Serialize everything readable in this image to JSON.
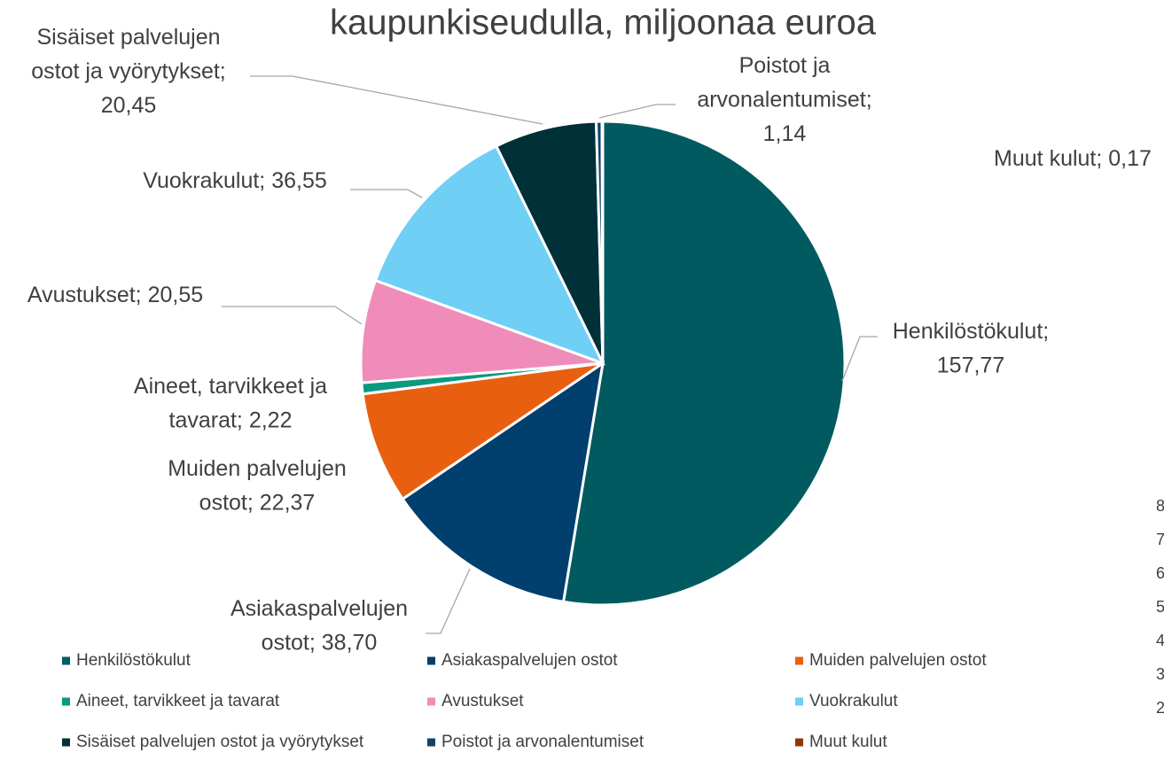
{
  "chart_data": {
    "type": "pie",
    "title": "kaupunkiseudulla, miljoonaa euroa",
    "categories": [
      "Henkilöstökulut",
      "Asiakaspalvelujen ostot",
      "Muiden palvelujen ostot",
      "Aineet, tarvikkeet ja tavarat",
      "Avustukset",
      "Vuokrakulut",
      "Sisäiset palvelujen ostot ja vyörytykset",
      "Poistot ja arvonalentumiset",
      "Muut kulut"
    ],
    "values": [
      157.77,
      38.7,
      22.37,
      2.22,
      20.55,
      36.55,
      20.45,
      1.14,
      0.17
    ],
    "value_labels": [
      "Henkilöstökulut; 157,77",
      "Asiakaspalvelujen ostot; 38,70",
      "Muiden palvelujen ostot; 22,37",
      "Aineet, tarvikkeet ja tavarat; 2,22",
      "Avustukset; 20,55",
      "Vuokrakulut; 36,55",
      "Sisäiset palvelujen ostot ja vyörytykset; 20,45",
      "Poistot ja arvonalentumiset; 1,14",
      "Muut kulut; 0,17"
    ],
    "colors": [
      "#005a5f",
      "#003f6e",
      "#e8600f",
      "#0a9a80",
      "#f08cba",
      "#6fcff5",
      "#003038",
      "#14406f",
      "#8b3a0f"
    ],
    "legend": "bottom"
  },
  "cropped_text": [
    "8",
    "7",
    "6",
    "5",
    "4",
    "3",
    "2"
  ]
}
